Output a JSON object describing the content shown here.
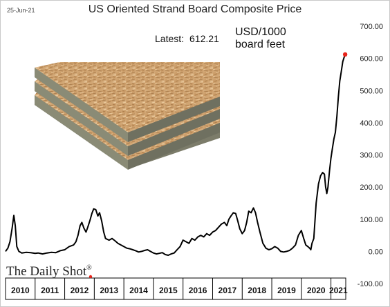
{
  "header": {
    "date": "25-Jun-21",
    "title": "US Oriented Strand Board Composite Price"
  },
  "annotation": {
    "latest_label": "Latest:",
    "latest_value": "612.21",
    "units_line1": "USD/1000",
    "units_line2": "board feet"
  },
  "branding": {
    "logo_text": "The Daily Shot",
    "logo_mark": "®"
  },
  "chart_data": {
    "type": "line",
    "title": "US Oriented Strand Board Composite Price",
    "xlabel": "",
    "ylabel": "USD/1000 board feet",
    "ylim": [
      -100,
      700
    ],
    "y_ticks": [
      700,
      600,
      500,
      400,
      300,
      200,
      100,
      0,
      -100
    ],
    "y_tick_labels": [
      "700.00",
      "600.00",
      "500.00",
      "400.00",
      "300.00",
      "200.00",
      "100.00",
      "0.00",
      "-100.00"
    ],
    "x_categories": [
      "2010",
      "2011",
      "2012",
      "2013",
      "2014",
      "2015",
      "2016",
      "2017",
      "2018",
      "2019",
      "2020",
      "2021"
    ],
    "x_range": [
      2010.0,
      2021.5
    ],
    "grid": false,
    "series": [
      {
        "color": "#000000",
        "last_point_color": "#e8241a",
        "x": [
          2010.0,
          2010.08,
          2010.15,
          2010.22,
          2010.28,
          2010.33,
          2010.38,
          2010.45,
          2010.55,
          2010.7,
          2010.85,
          2011.0,
          2011.1,
          2011.25,
          2011.4,
          2011.55,
          2011.7,
          2011.85,
          2012.0,
          2012.15,
          2012.3,
          2012.38,
          2012.45,
          2012.52,
          2012.58,
          2012.65,
          2012.72,
          2012.78,
          2012.85,
          2012.92,
          2012.98,
          2013.05,
          2013.12,
          2013.18,
          2013.25,
          2013.32,
          2013.38,
          2013.5,
          2013.6,
          2013.7,
          2013.8,
          2013.9,
          2014.0,
          2014.1,
          2014.2,
          2014.3,
          2014.4,
          2014.5,
          2014.6,
          2014.7,
          2014.8,
          2014.9,
          2015.0,
          2015.1,
          2015.2,
          2015.3,
          2015.4,
          2015.5,
          2015.6,
          2015.7,
          2015.8,
          2015.9,
          2016.0,
          2016.1,
          2016.2,
          2016.3,
          2016.4,
          2016.5,
          2016.6,
          2016.7,
          2016.8,
          2016.9,
          2017.0,
          2017.1,
          2017.2,
          2017.3,
          2017.4,
          2017.48,
          2017.55,
          2017.62,
          2017.7,
          2017.78,
          2017.85,
          2017.92,
          2018.0,
          2018.08,
          2018.15,
          2018.22,
          2018.3,
          2018.38,
          2018.45,
          2018.52,
          2018.6,
          2018.7,
          2018.8,
          2018.9,
          2019.0,
          2019.1,
          2019.2,
          2019.3,
          2019.4,
          2019.5,
          2019.6,
          2019.7,
          2019.8,
          2019.9,
          2020.0,
          2020.08,
          2020.15,
          2020.22,
          2020.28,
          2020.32,
          2020.36,
          2020.42,
          2020.5,
          2020.58,
          2020.65,
          2020.72,
          2020.78,
          2020.82,
          2020.86,
          2020.9,
          2020.95,
          2021.0,
          2021.05,
          2021.1,
          2021.15,
          2021.2,
          2021.25,
          2021.3,
          2021.35,
          2021.4,
          2021.45,
          2021.48
        ],
        "values": [
          0,
          10,
          30,
          70,
          112,
          80,
          15,
          0,
          -5,
          -3,
          -4,
          -6,
          -5,
          -8,
          -5,
          -3,
          -4,
          2,
          5,
          15,
          20,
          30,
          50,
          80,
          90,
          72,
          60,
          75,
          95,
          118,
          132,
          130,
          110,
          120,
          95,
          60,
          40,
          35,
          40,
          33,
          25,
          20,
          15,
          10,
          8,
          5,
          2,
          -2,
          0,
          3,
          5,
          0,
          -5,
          -8,
          -6,
          -4,
          -10,
          -12,
          -8,
          -5,
          5,
          15,
          35,
          30,
          25,
          40,
          35,
          45,
          50,
          45,
          55,
          50,
          60,
          65,
          75,
          85,
          90,
          80,
          100,
          110,
          120,
          118,
          95,
          70,
          55,
          65,
          90,
          125,
          120,
          135,
          120,
          90,
          60,
          25,
          10,
          5,
          8,
          15,
          10,
          0,
          -2,
          0,
          3,
          10,
          20,
          50,
          65,
          40,
          20,
          15,
          10,
          5,
          25,
          40,
          150,
          210,
          235,
          245,
          240,
          200,
          180,
          200,
          250,
          290,
          320,
          350,
          370,
          420,
          480,
          530,
          560,
          590,
          605,
          612.21
        ]
      }
    ]
  }
}
